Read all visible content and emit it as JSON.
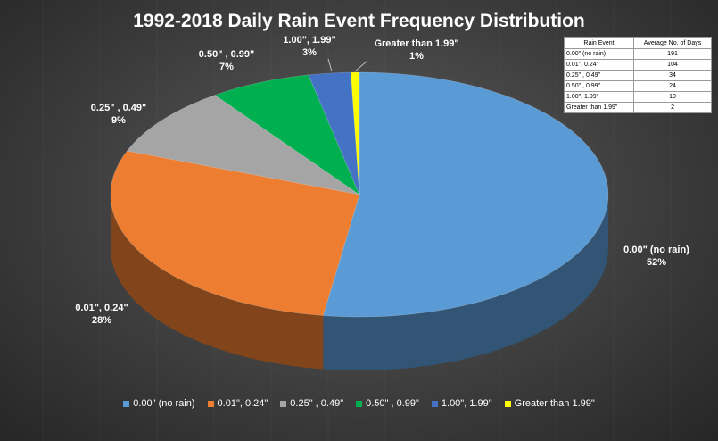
{
  "chart_data": {
    "type": "pie",
    "title": "1992-2018 Daily Rain Event Frequency Distribution",
    "categories": [
      "0.00\"  (no rain)",
      "0.01\", 0.24\"",
      "0.25\" , 0.49\"",
      "0.50\" , 0.99\"",
      "1.00\", 1.99\"",
      "Greater than 1.99\""
    ],
    "values": [
      191,
      104,
      34,
      24,
      10,
      2
    ],
    "percent_labels": [
      "52%",
      "28%",
      "9%",
      "7%",
      "3%",
      "1%"
    ],
    "slice_labels": [
      {
        "line1": "0.00\"  (no rain)",
        "line2": "52%"
      },
      {
        "line1": "0.01\", 0.24\"",
        "line2": "28%"
      },
      {
        "line1": "0.25\" , 0.49\"",
        "line2": "9%"
      },
      {
        "line1": "0.50\" , 0.99\"",
        "line2": "7%"
      },
      {
        "line1": "1.00\", 1.99\"",
        "line2": "3%"
      },
      {
        "line1": "Greater than 1.99\"",
        "line2": "1%"
      }
    ],
    "colors": [
      "#5b9bd5",
      "#ed7d31",
      "#a5a5a5",
      "#00b050",
      "#4472c4",
      "#ffff00"
    ],
    "legend_position": "bottom",
    "style": "3D pie"
  },
  "table": {
    "headers": [
      "Rain Event",
      "Average No. of Days"
    ],
    "rows": [
      [
        "0.00\"  (no rain)",
        "191"
      ],
      [
        "0.01\", 0.24\"",
        "104"
      ],
      [
        "0.25\" , 0.49\"",
        "34"
      ],
      [
        "0.50\" , 0.99\"",
        "24"
      ],
      [
        "1.00\", 1.99\"",
        "10"
      ],
      [
        "Greater than 1.99\"",
        "2"
      ]
    ]
  }
}
